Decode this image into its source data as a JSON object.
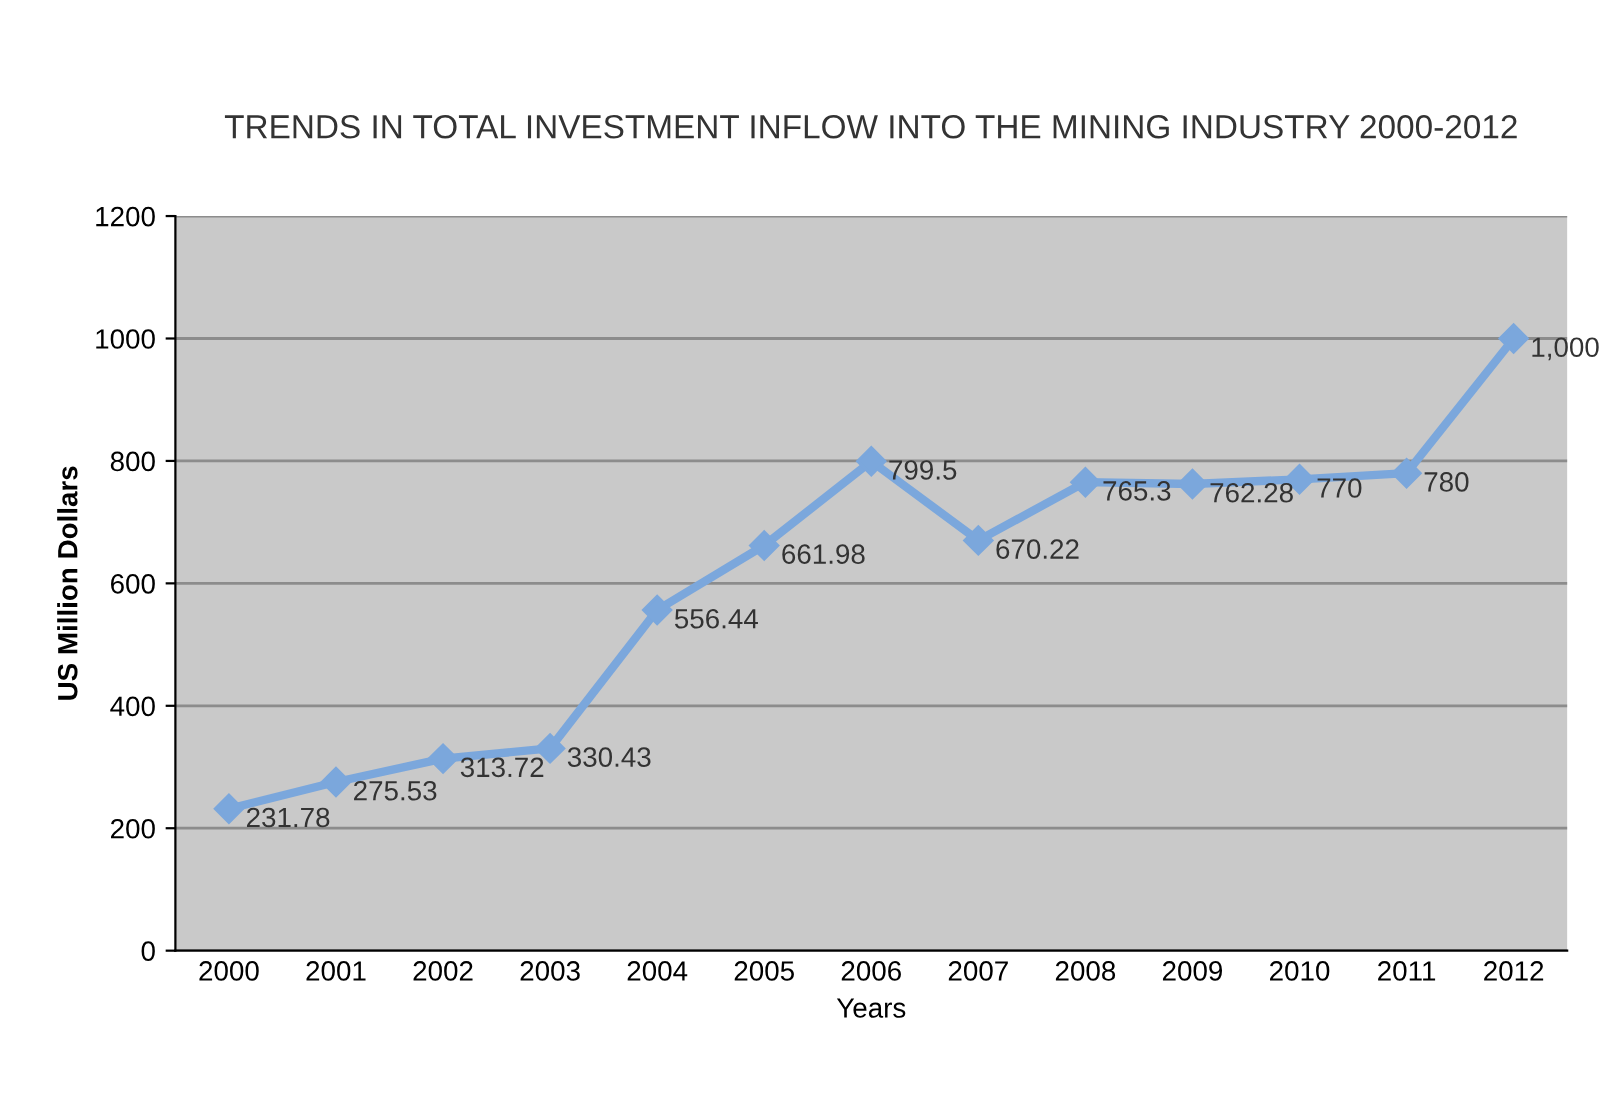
{
  "chart_data": {
    "type": "line",
    "title": "TRENDS IN TOTAL INVESTMENT INFLOW INTO THE MINING INDUSTRY 2000-2012",
    "xlabel": "Years",
    "ylabel": "US Million Dollars",
    "categories": [
      "2000",
      "2001",
      "2002",
      "2003",
      "2004",
      "2005",
      "2006",
      "2007",
      "2008",
      "2009",
      "2010",
      "2011",
      "2012"
    ],
    "series": [
      {
        "color": "#7ba7dc",
        "values": [
          231.78,
          275.53,
          313.72,
          330.43,
          556.44,
          661.98,
          799.5,
          670.22,
          765.3,
          762.28,
          770,
          780,
          1000
        ],
        "value_labels": [
          "231.78",
          "275.53",
          "313.72",
          "330.43",
          "556.44",
          "661.98",
          "799.5",
          "670.22",
          "765.3",
          "762.28",
          "770",
          "780",
          "1,000"
        ]
      }
    ],
    "ylim": [
      0,
      1200
    ],
    "yticks": [
      0,
      200,
      400,
      600,
      800,
      1000,
      1200
    ],
    "grid": "y",
    "marker": "diamond",
    "line_style": "solid"
  }
}
